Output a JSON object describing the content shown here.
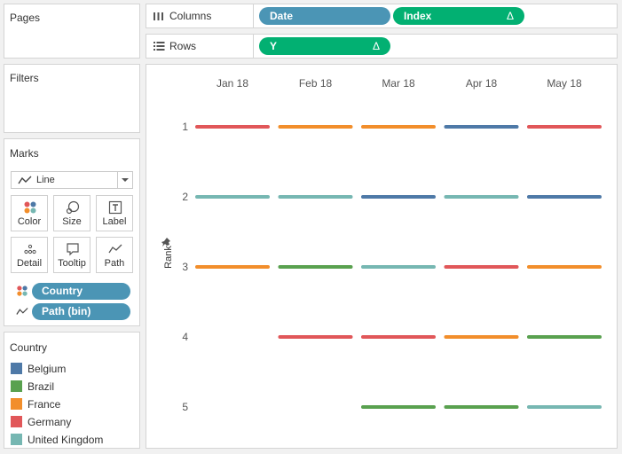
{
  "panels": {
    "pages_title": "Pages",
    "filters_title": "Filters",
    "marks_title": "Marks"
  },
  "shelves": {
    "columns_label": "Columns",
    "rows_label": "Rows",
    "columns_pills": [
      {
        "label": "Date",
        "delta": ""
      },
      {
        "label": "Index",
        "delta": "Δ"
      }
    ],
    "rows_pills": [
      {
        "label": "Y",
        "delta": "Δ"
      }
    ]
  },
  "marks": {
    "mark_type": "Line",
    "buttons": [
      "Color",
      "Size",
      "Label",
      "Detail",
      "Tooltip",
      "Path"
    ],
    "fields": [
      {
        "label": "Country",
        "icon": "color-dots-icon"
      },
      {
        "label": "Path (bin)",
        "icon": "path-line-icon"
      }
    ]
  },
  "legend": {
    "title": "Country",
    "items": [
      {
        "label": "Belgium",
        "color": "#4e79a7"
      },
      {
        "label": "Brazil",
        "color": "#59a14f"
      },
      {
        "label": "France",
        "color": "#f28e2b"
      },
      {
        "label": "Germany",
        "color": "#e15759"
      },
      {
        "label": "United Kingdom",
        "color": "#76b7b2"
      }
    ]
  },
  "chart_data": {
    "type": "line",
    "ylabel": "Rank",
    "xlabel": "",
    "categories": [
      "Jan 18",
      "Feb 18",
      "Mar 18",
      "Apr 18",
      "May 18"
    ],
    "y_ticks": [
      "1",
      "2",
      "3",
      "4",
      "5"
    ],
    "y_reversed": true,
    "series": [
      {
        "name": "Belgium",
        "values": [
          null,
          null,
          2,
          1,
          2
        ]
      },
      {
        "name": "Brazil",
        "values": [
          null,
          3,
          5,
          5,
          4
        ]
      },
      {
        "name": "France",
        "values": [
          3,
          1,
          1,
          4,
          3
        ]
      },
      {
        "name": "Germany",
        "values": [
          1,
          4,
          4,
          3,
          1
        ]
      },
      {
        "name": "United Kingdom",
        "values": [
          2,
          2,
          3,
          2,
          5
        ]
      }
    ]
  }
}
